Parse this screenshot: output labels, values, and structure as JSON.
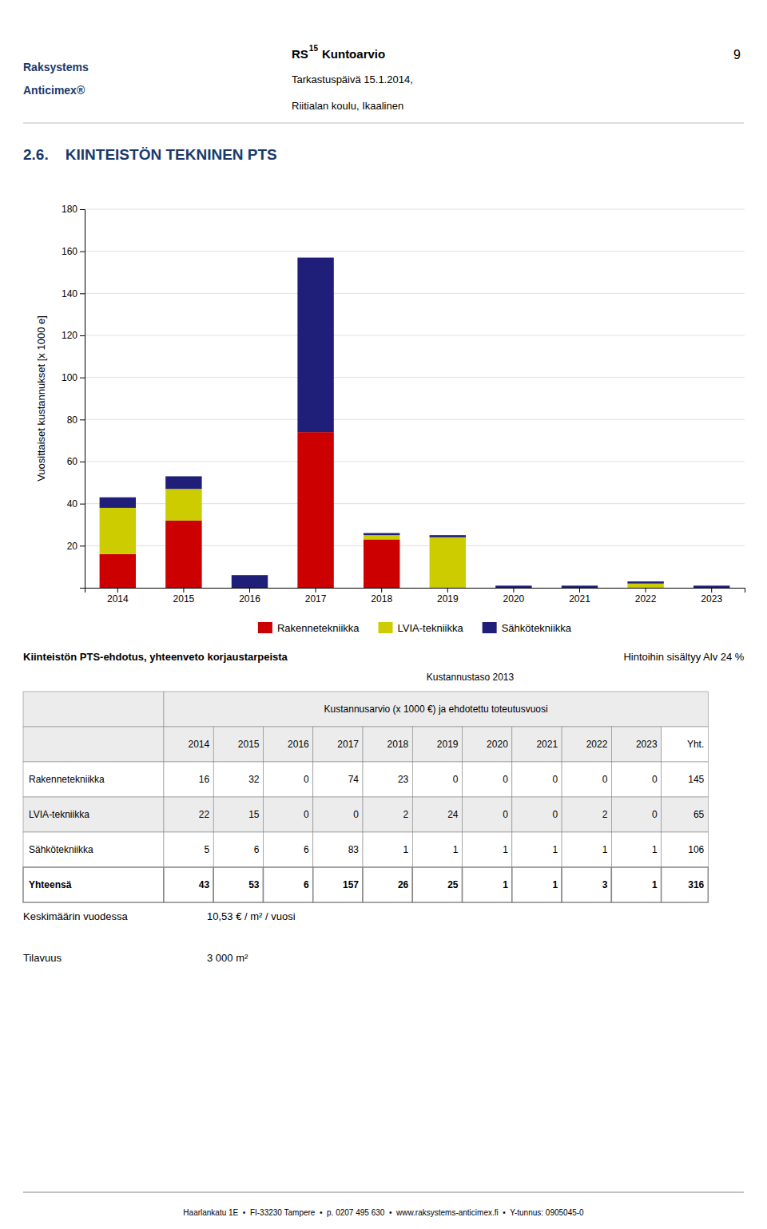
{
  "chart_data": {
    "type": "bar",
    "stacked": true,
    "title": "2.6.    KIINTEISTÖN TEKNINEN PTS",
    "ylabel": "Vuosittaiset kustannukset [x 1000 e]",
    "categories": [
      "2014",
      "2015",
      "2016",
      "2017",
      "2018",
      "2019",
      "2020",
      "2021",
      "2022",
      "2023"
    ],
    "series": [
      {
        "name": "Rakennetekniikka",
        "color": "#CC0000",
        "values": [
          16,
          32,
          0,
          74,
          23,
          0,
          0,
          0,
          0,
          0
        ]
      },
      {
        "name": "LVIA-tekniikka",
        "color": "#CCCC00",
        "values": [
          22,
          15,
          0,
          0,
          2,
          24,
          0,
          0,
          2,
          0
        ]
      },
      {
        "name": "Sähkötekniikka",
        "color": "#1F1F7A",
        "values": [
          5,
          6,
          6,
          83,
          1,
          1,
          1,
          1,
          1,
          1
        ]
      }
    ],
    "ylim": [
      0,
      180
    ],
    "yticks": [
      20,
      40,
      60,
      80,
      100,
      120,
      140,
      160,
      180
    ],
    "grid": true,
    "legend": "bottom"
  },
  "header": {
    "color": "#1a3a6b",
    "logo": [
      "Raksystems",
      "Anticimex®"
    ],
    "report": "RS",
    "report_sup": "15",
    "report_name": "Kuntoarvio",
    "date": "Tarkastuspäivä 15.1.2014,",
    "location": "Riitialan koulu, Ikaalinen",
    "page": "9"
  },
  "table": {
    "title": "Kiinteistön PTS-ehdotus, yhteenveto korjaustarpeista",
    "note": "Hintoihin sisältyy Alv 24 %",
    "subtitle": "Kustannustaso 2013",
    "column_header": "Kustannusarvio (x 1000 €) ja ehdotettu toteutusvuosi",
    "columns": [
      "2014",
      "2015",
      "2016",
      "2017",
      "2018",
      "2019",
      "2020",
      "2021",
      "2022",
      "2023",
      "Yht."
    ],
    "rows": [
      {
        "label": "Rakennetekniikka",
        "values": [
          16,
          32,
          0,
          74,
          23,
          0,
          0,
          0,
          0,
          0,
          145
        ]
      },
      {
        "label": "LVIA-tekniikka",
        "values": [
          22,
          15,
          0,
          0,
          2,
          24,
          0,
          0,
          2,
          0,
          65
        ]
      },
      {
        "label": "Sähkötekniikka",
        "values": [
          5,
          6,
          6,
          83,
          1,
          1,
          1,
          1,
          1,
          1,
          106
        ]
      }
    ],
    "total_label": "Yhteensä",
    "total_values": [
      43,
      53,
      6,
      157,
      26,
      25,
      1,
      1,
      3,
      1,
      316
    ]
  },
  "summary": [
    {
      "label": "Keskimäärin vuodessa",
      "value": "10,53 € / m² / vuosi"
    },
    {
      "label": "Tilavuus",
      "value": "3 000 m²"
    }
  ],
  "footer": "Haarlankatu 1E  •  FI-33230 Tampere  •  p. 0207 495 630  •  www.raksystems-anticimex.fi  •  Y-tunnus: 0905045-0"
}
